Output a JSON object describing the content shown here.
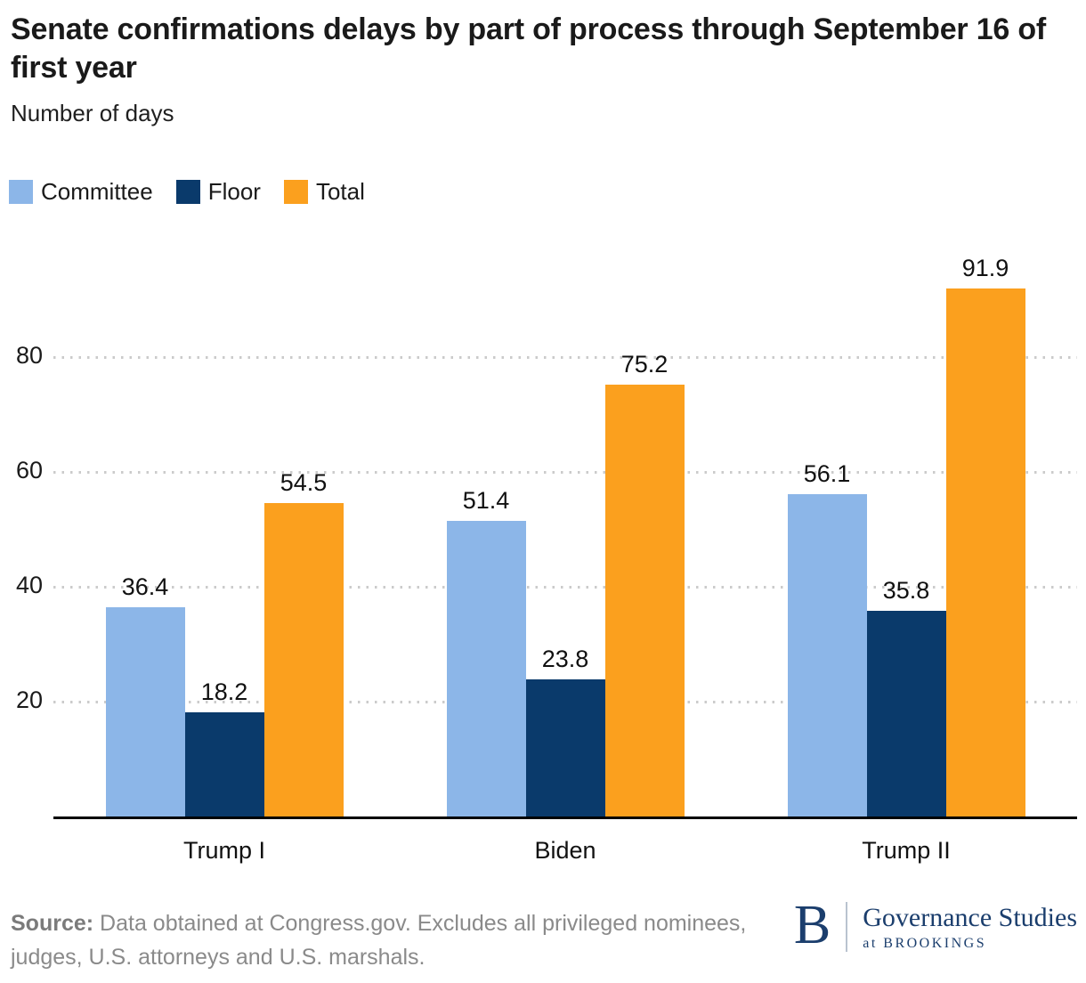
{
  "header": {
    "title": "Senate confirmations delays by part of process through September 16 of first year",
    "subtitle": "Number of days"
  },
  "chart_data": {
    "type": "bar",
    "categories": [
      "Trump I",
      "Biden",
      "Trump II"
    ],
    "series": [
      {
        "name": "Committee",
        "color": "#8CB6E8",
        "values": [
          36.4,
          51.4,
          56.1
        ]
      },
      {
        "name": "Floor",
        "color": "#0A3A6B",
        "values": [
          18.2,
          23.8,
          35.8
        ]
      },
      {
        "name": "Total",
        "color": "#FBA01E",
        "values": [
          54.5,
          75.2,
          91.9
        ]
      }
    ],
    "title": "Senate confirmations delays by part of process through September 16 of first year",
    "ylabel": "Number of days",
    "xlabel": "",
    "yticks": [
      20,
      40,
      60,
      80
    ],
    "ylim": [
      0,
      103
    ],
    "grid": "horizontal-dotted",
    "legend_position": "top-left",
    "value_labels": true,
    "axis_color": "#000000",
    "gridline_color": "#cbcbcb"
  },
  "footer": {
    "source_label": "Source:",
    "source_text": " Data obtained at Congress.gov. Excludes all privileged nominees, judges, U.S. attorneys and U.S. marshals.",
    "logo": {
      "letter": "B",
      "name": "Governance Studies",
      "sub": "at BROOKINGS"
    }
  }
}
